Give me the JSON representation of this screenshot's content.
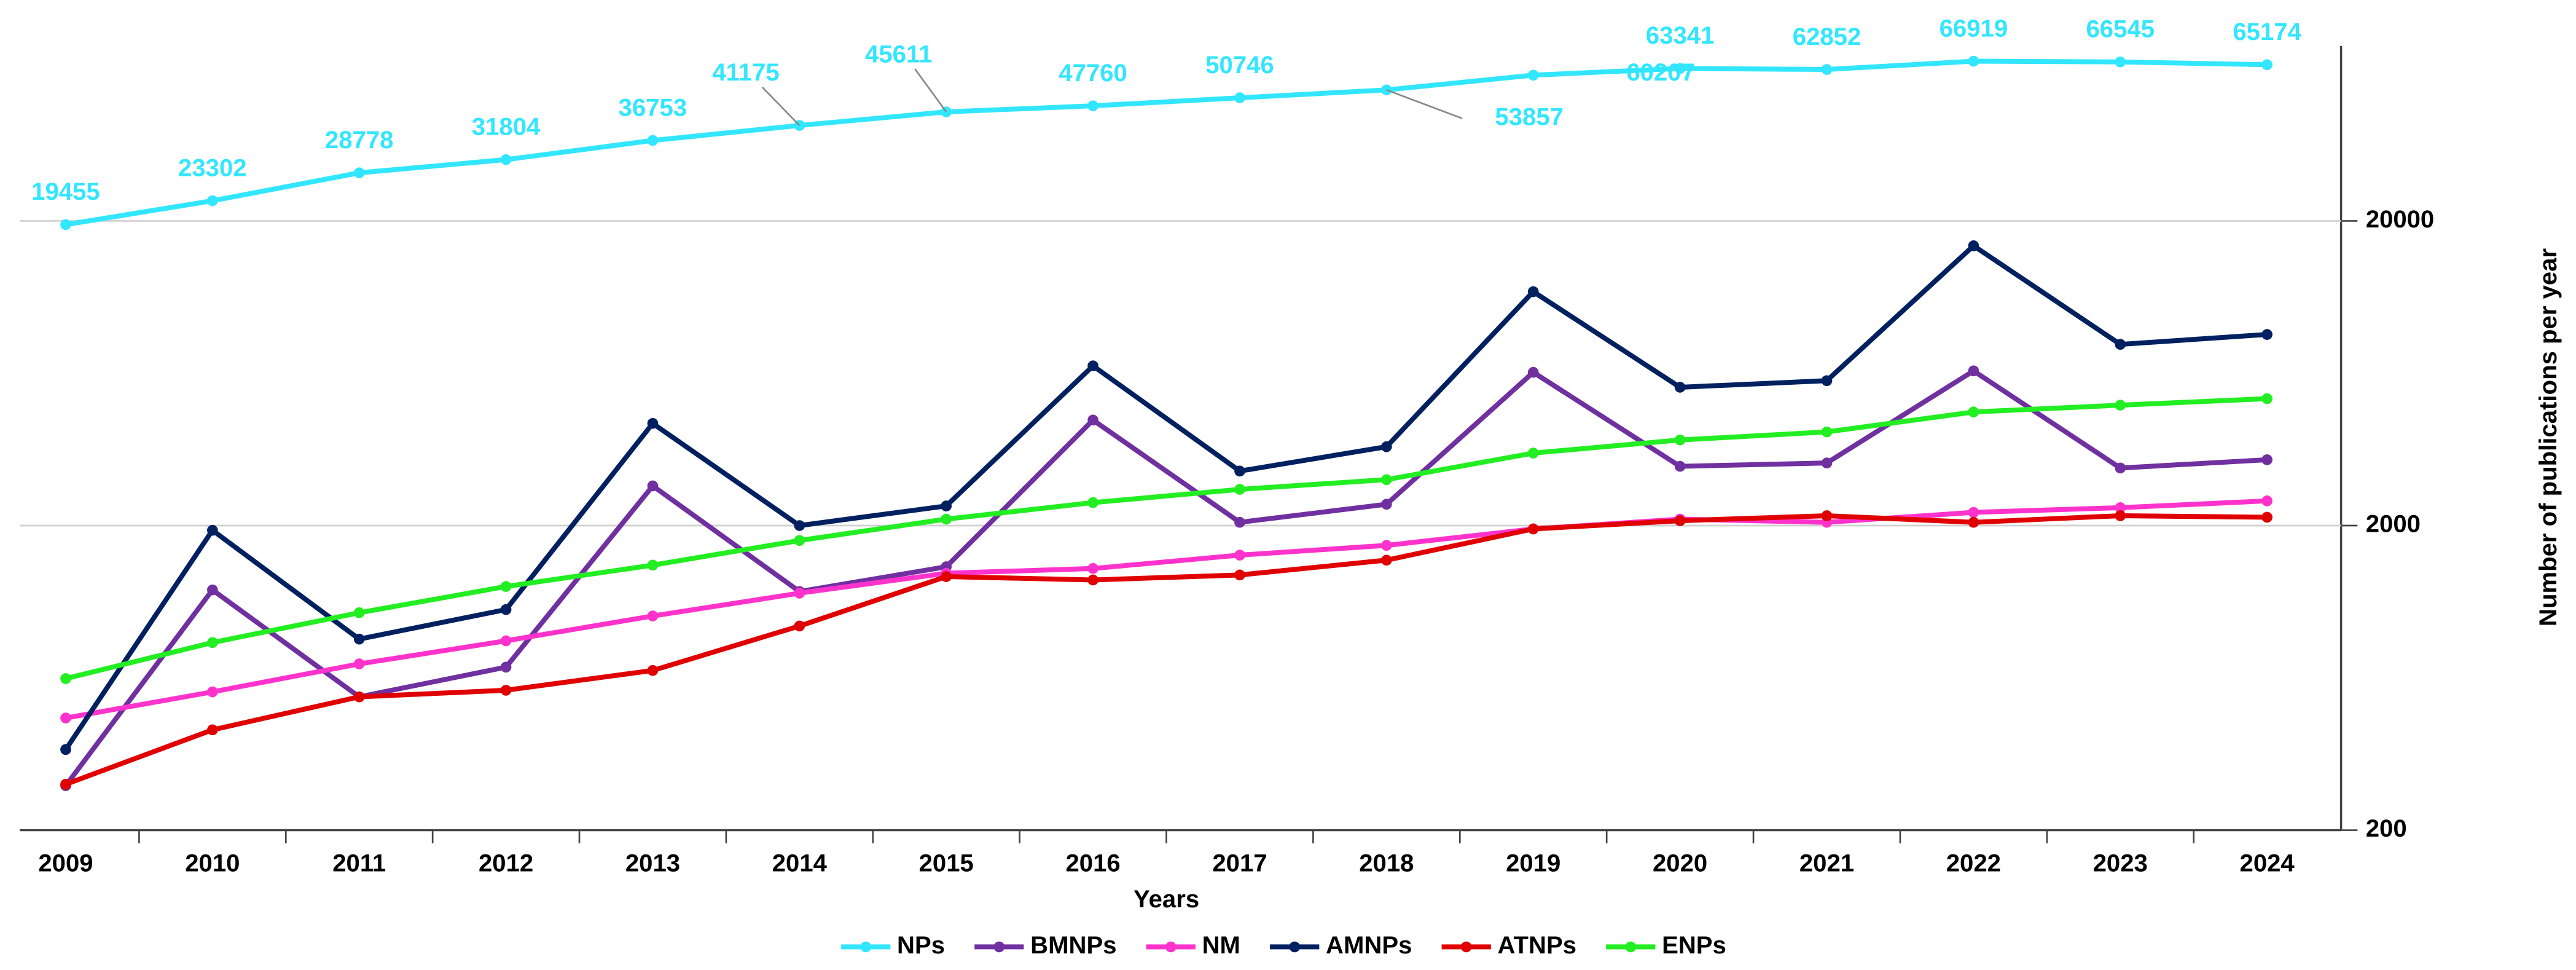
{
  "chart_data": {
    "type": "line",
    "x_label": "Years",
    "y_label": "Number of publications per year",
    "categories": [
      "2009",
      "2010",
      "2011",
      "2012",
      "2013",
      "2014",
      "2015",
      "2016",
      "2017",
      "2018",
      "2019",
      "2020",
      "2021",
      "2022",
      "2023",
      "2024"
    ],
    "y_scale": "log",
    "ylim": [
      200,
      75000
    ],
    "yticks": [
      200,
      2000,
      20000
    ],
    "grid": true,
    "legend": "bottom",
    "series": [
      {
        "name": "NPs",
        "color": "#33e6ff",
        "values": [
          19455,
          23302,
          28778,
          31804,
          36753,
          41175,
          45611,
          47760,
          50746,
          53857,
          60207,
          63341,
          62852,
          66919,
          66545,
          65174
        ]
      },
      {
        "name": "BMNPs",
        "color": "#7030a0",
        "values": [
          280,
          1230,
          548,
          686,
          2700,
          1215,
          1465,
          4440,
          2050,
          2350,
          6370,
          3130,
          3210,
          6440,
          3090,
          3290
        ]
      },
      {
        "name": "NM",
        "color": "#ff33cc",
        "values": [
          467,
          569,
          703,
          837,
          1010,
          1200,
          1395,
          1446,
          1600,
          1722,
          1950,
          2100,
          2050,
          2210,
          2290,
          2410
        ]
      },
      {
        "name": "AMNPs",
        "color": "#002060",
        "values": [
          368,
          1930,
          848,
          1060,
          4330,
          2000,
          2320,
          6690,
          3020,
          3630,
          11720,
          5690,
          5980,
          16580,
          7870,
          8480
        ]
      },
      {
        "name": "ATNPs",
        "color": "#e00000",
        "values": [
          283,
          427,
          548,
          576,
          669,
          936,
          1360,
          1326,
          1377,
          1540,
          1950,
          2075,
          2155,
          2050,
          2155,
          2130
        ]
      },
      {
        "name": "ENPs",
        "color": "#22ee22",
        "values": [
          629,
          826,
          1035,
          1262,
          1483,
          1787,
          2100,
          2380,
          2630,
          2830,
          3460,
          3820,
          4060,
          4720,
          4970,
          5220
        ]
      }
    ]
  }
}
